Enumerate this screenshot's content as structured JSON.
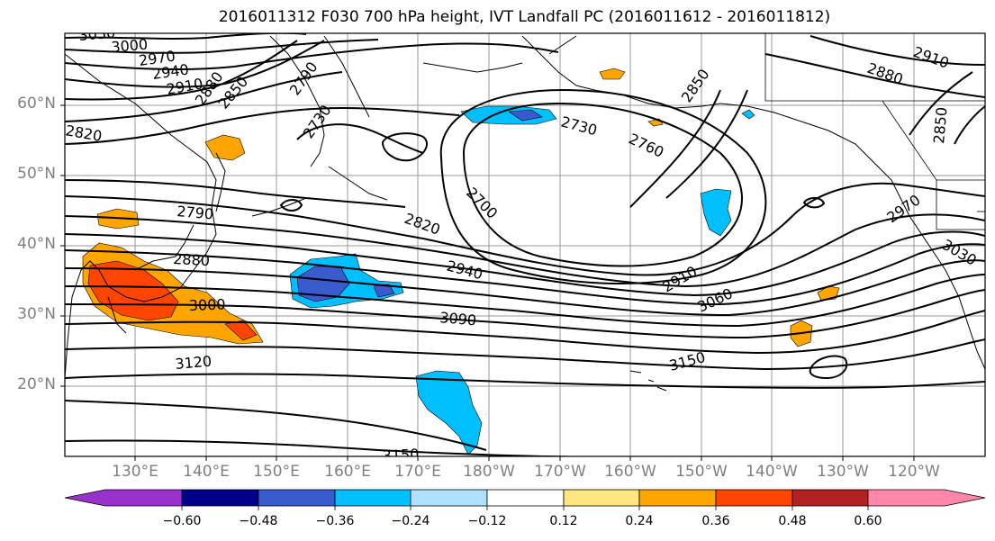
{
  "title": "2016011312 F030 700 hPa height, IVT Landfall PC (2016011612 - 2016011812)",
  "map": {
    "lat_labels": [
      "60°N",
      "50°N",
      "40°N",
      "30°N",
      "20°N"
    ],
    "lon_labels": [
      "130°E",
      "140°E",
      "150°E",
      "160°E",
      "170°E",
      "180°W",
      "170°W",
      "160°W",
      "150°W",
      "140°W",
      "130°W",
      "120°W"
    ],
    "contour_labels": [
      "3030",
      "3000",
      "2970",
      "2940",
      "2910",
      "2880",
      "2850",
      "2790",
      "2820",
      "2730",
      "2730",
      "2760",
      "2850",
      "2880",
      "2910",
      "2850",
      "2700",
      "2790",
      "2820",
      "2940",
      "2880",
      "3000",
      "3090",
      "3120",
      "2910",
      "3060",
      "3150",
      "3150",
      "2970",
      "3030"
    ]
  },
  "colorbar": {
    "ticks": [
      "−0.60",
      "−0.48",
      "−0.36",
      "−0.24",
      "−0.12",
      "0.12",
      "0.24",
      "0.36",
      "0.48",
      "0.60"
    ],
    "colors": [
      "#9932cc",
      "#00008b",
      "#3a5bcd",
      "#00bfff",
      "#b0e0ff",
      "#ffffff",
      "#ffe680",
      "#ffa500",
      "#ff4500",
      "#b22222",
      "#ff88aa"
    ]
  }
}
